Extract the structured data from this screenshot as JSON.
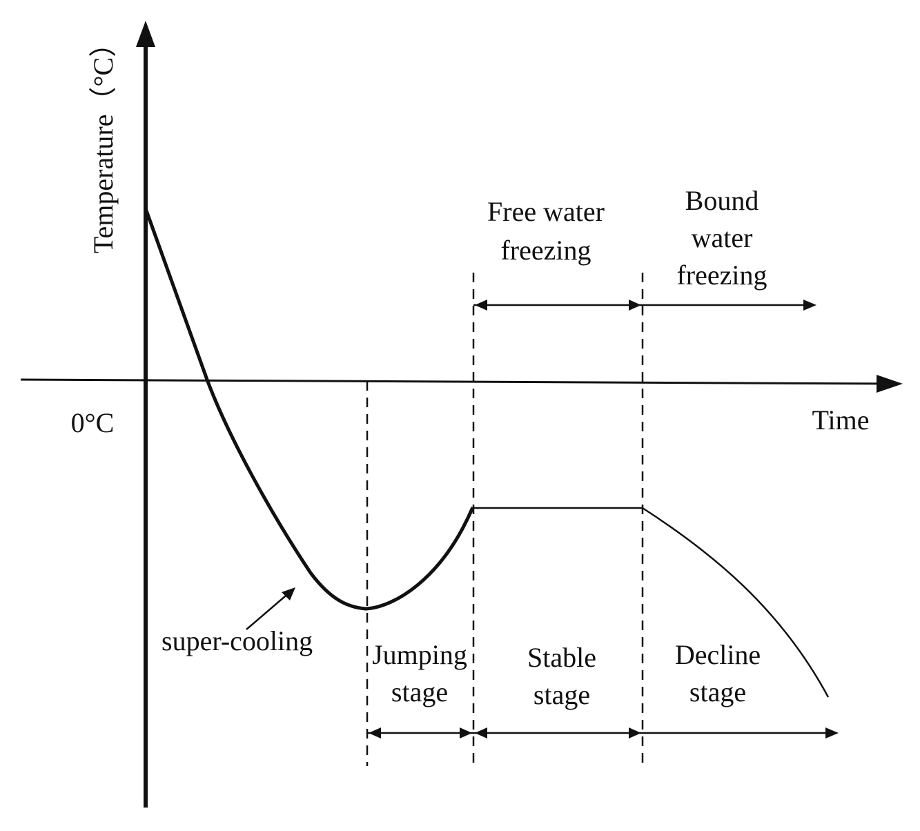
{
  "chart_data": {
    "type": "line",
    "title": "",
    "xlabel": "Time",
    "ylabel": "Temperature（°C）",
    "zero_label": "0°C",
    "description_annotation": "super-cooling",
    "phases": [
      {
        "name": "super-cooling"
      },
      {
        "name": "Jumping stage",
        "line1": "Jumping",
        "line2": "stage"
      },
      {
        "name": "Stable stage",
        "line1": "Stable",
        "line2": "stage"
      },
      {
        "name": "Decline stage",
        "line1": "Decline",
        "line2": "stage"
      }
    ],
    "freezing_regions": [
      {
        "name": "Free water freezing",
        "line1": "Free water",
        "line2": "freezing"
      },
      {
        "name": "Bound water freezing",
        "line1": "Bound",
        "line2": "water",
        "line3": "freezing"
      }
    ],
    "curve_note": "Qualitative curve: temperature drops below 0°C (super-cooling), jumps up, stays stable, then declines.",
    "color": "#111111"
  }
}
